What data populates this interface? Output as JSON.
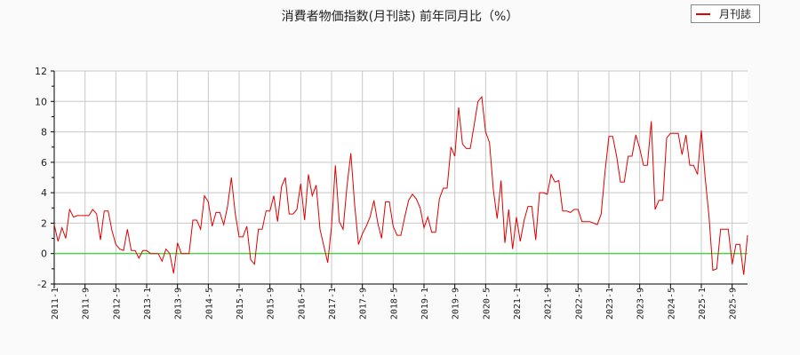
{
  "chart_data": {
    "type": "line",
    "title": "消費者物価指数(月刊誌) 前年同月比（%）",
    "xlabel": "",
    "ylabel": "",
    "ylim": [
      -2,
      12
    ],
    "yticks": [
      -2,
      0,
      2,
      4,
      6,
      8,
      10,
      12
    ],
    "grid": true,
    "legend_position": "top-right",
    "x_tick_labels": [
      "2011-1",
      "2011-9",
      "2012-5",
      "2013-1",
      "2013-9",
      "2014-5",
      "2015-1",
      "2015-9",
      "2016-5",
      "2017-1",
      "2017-9",
      "2018-5",
      "2019-1",
      "2019-9",
      "2020-5",
      "2021-1",
      "2021-9",
      "2022-5",
      "2023-1",
      "2023-9",
      "2024-5",
      "2025-1",
      "2025-9"
    ],
    "x_start": "2011-1",
    "x_end": "2025-12",
    "series": [
      {
        "name": "月刊誌",
        "color": "#e00000",
        "values": [
          1.9,
          0.8,
          1.7,
          1.0,
          2.9,
          2.4,
          2.5,
          2.5,
          2.5,
          2.5,
          2.9,
          2.6,
          0.9,
          2.8,
          2.8,
          1.5,
          0.6,
          0.3,
          0.2,
          1.6,
          0.2,
          0.2,
          -0.3,
          0.2,
          0.2,
          0.0,
          0.0,
          0.0,
          -0.5,
          0.3,
          0.0,
          -1.3,
          0.7,
          0.0,
          0.0,
          0.0,
          2.2,
          2.2,
          1.6,
          3.8,
          3.4,
          1.8,
          2.7,
          2.7,
          1.9,
          3.1,
          5.0,
          2.6,
          1.1,
          1.1,
          1.8,
          -0.4,
          -0.7,
          1.6,
          1.6,
          2.8,
          2.8,
          3.8,
          2.1,
          4.4,
          5.0,
          2.6,
          2.6,
          2.9,
          4.6,
          2.2,
          5.2,
          3.8,
          4.5,
          1.6,
          0.5,
          -0.6,
          1.8,
          5.8,
          2.1,
          1.6,
          4.4,
          6.6,
          3.2,
          0.6,
          1.3,
          1.8,
          2.4,
          3.5,
          2.0,
          1.0,
          3.4,
          3.4,
          1.8,
          1.2,
          1.2,
          2.4,
          3.5,
          3.9,
          3.6,
          3.0,
          1.7,
          2.4,
          1.4,
          1.4,
          3.6,
          4.3,
          4.3,
          7.0,
          6.4,
          9.6,
          7.2,
          6.9,
          6.9,
          8.4,
          10.0,
          10.3,
          8.0,
          7.3,
          4.2,
          2.3,
          4.8,
          0.7,
          2.9,
          0.3,
          2.4,
          0.8,
          2.2,
          3.1,
          3.1,
          0.9,
          4.0,
          4.0,
          3.9,
          5.2,
          4.7,
          4.8,
          2.8,
          2.8,
          2.7,
          2.9,
          2.9,
          2.1,
          2.1,
          2.1,
          2.0,
          1.9,
          2.6,
          5.4,
          7.7,
          7.7,
          6.4,
          4.7,
          4.7,
          6.4,
          6.4,
          7.8,
          6.9,
          5.8,
          5.8,
          8.7,
          2.9,
          3.5,
          3.5,
          7.6,
          7.9,
          7.9,
          7.9,
          6.5,
          7.8,
          5.8,
          5.8,
          5.2,
          8.1,
          5.0,
          2.4,
          -1.1,
          -1.0,
          1.6,
          1.6,
          1.6,
          -0.7,
          0.6,
          0.6,
          -1.4,
          1.2
        ]
      }
    ]
  },
  "legend": {
    "label": "月刊誌"
  }
}
